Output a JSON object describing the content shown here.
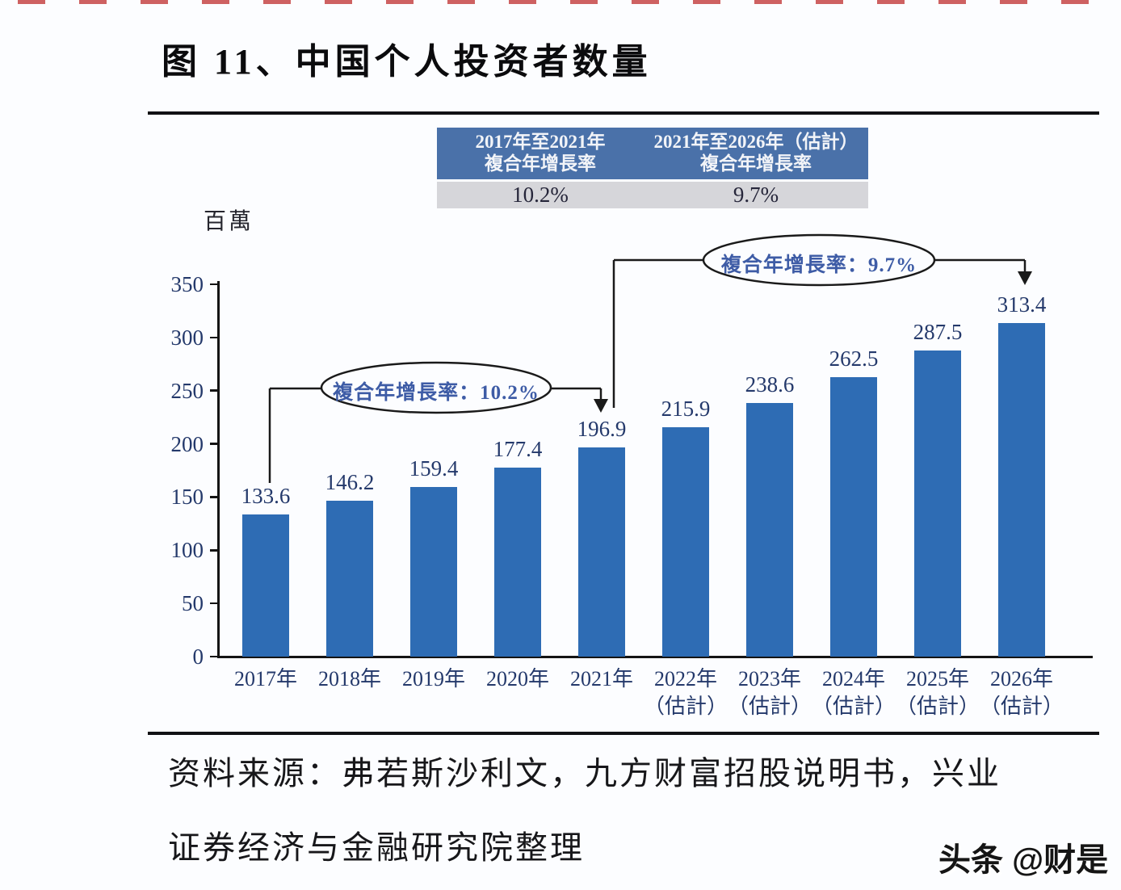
{
  "page": {
    "title": "图 11、中国个人投资者数量",
    "source_line1": "资料来源：弗若斯沙利文，九方财富招股说明书，兴业",
    "source_line2": "证券经济与金融研究院整理",
    "watermark": "头条 @财是"
  },
  "cagr_table": {
    "header_bg": "#4a71a9",
    "value_bg": "#d6d6da",
    "columns": [
      {
        "header_line1": "2017年至2021年",
        "header_line2": "複合年增長率",
        "value": "10.2%"
      },
      {
        "header_line1": "2021年至2026年（估計）",
        "header_line2": "複合年增長率",
        "value": "9.7%"
      }
    ]
  },
  "chart_data": {
    "type": "bar",
    "title": "中国个人投资者数量",
    "unit_label": "百萬",
    "categories": [
      "2017年",
      "2018年",
      "2019年",
      "2020年",
      "2021年",
      "2022年（估計）",
      "2023年（估計）",
      "2024年（估計）",
      "2025年（估計）",
      "2026年（估計）"
    ],
    "values": [
      133.6,
      146.2,
      159.4,
      177.4,
      196.9,
      215.9,
      238.6,
      262.5,
      287.5,
      313.4
    ],
    "ylim": [
      0,
      350
    ],
    "yticks": [
      0,
      50,
      100,
      150,
      200,
      250,
      300,
      350
    ],
    "grid": false,
    "legend": "none",
    "bar_color": "#2e6cb4",
    "label_color": "#24396b",
    "annotations": [
      {
        "label": "複合年增長率：10.2%",
        "from": "2017年",
        "to": "2021年"
      },
      {
        "label": "複合年增長率：9.7%",
        "from": "2021年",
        "to": "2026年"
      }
    ]
  }
}
